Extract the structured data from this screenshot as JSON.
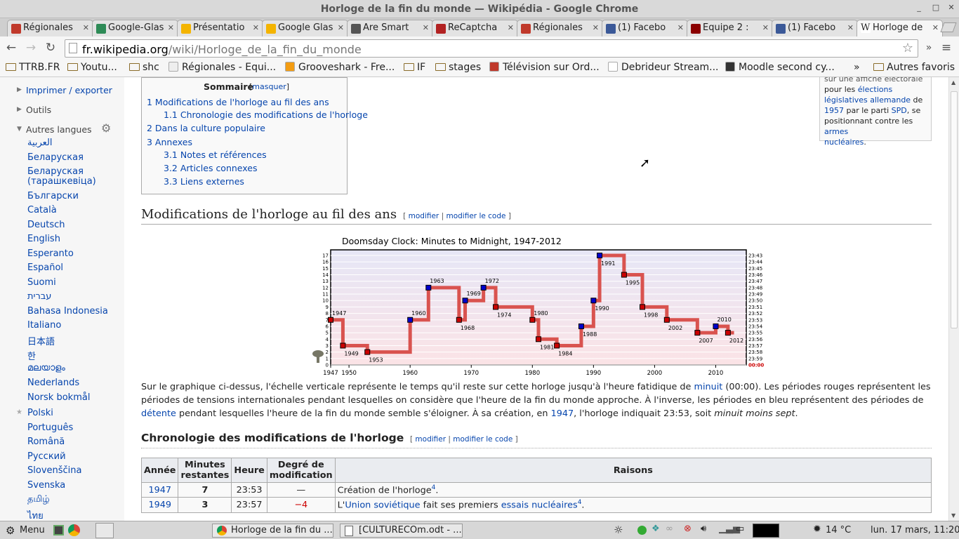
{
  "window": {
    "title": "Horloge de la fin du monde — Wikipédia - Google Chrome"
  },
  "tabs": [
    {
      "label": "Régionales",
      "color": "#c0392b"
    },
    {
      "label": "Google-Glas",
      "color": "#2e8b57"
    },
    {
      "label": "Présentatio",
      "color": "#f4b400"
    },
    {
      "label": "Google Glas",
      "color": "#f4b400"
    },
    {
      "label": "Are Smart",
      "color": "#555555"
    },
    {
      "label": "ReCaptcha",
      "color": "#b22222"
    },
    {
      "label": "Régionales",
      "color": "#c0392b"
    },
    {
      "label": "(1) Facebo",
      "color": "#3b5998"
    },
    {
      "label": "Equipe 2 :",
      "color": "#8b0000"
    },
    {
      "label": "(1) Facebo",
      "color": "#3b5998"
    },
    {
      "label": "Horloge de",
      "color": "#ffffff"
    }
  ],
  "address": {
    "domain": "fr.wikipedia.org",
    "path": "/wiki/Horloge_de_la_fin_du_monde"
  },
  "bookmarks": [
    "TTRB.FR",
    "Youtu...",
    "shc",
    "Régionales - Equi...",
    "Grooveshark - Fre...",
    "IF",
    "stages",
    "Télévision sur Ord...",
    "Debrideur Stream...",
    "Moodle second cy...",
    "»",
    "Autres favoris"
  ],
  "sidebar": {
    "print": "Imprimer / exporter",
    "tools": "Outils",
    "other_langs": "Autres langues",
    "languages": [
      "العربية",
      "Беларуская",
      "Беларуская",
      "(тарашкевіца)",
      "Български",
      "Català",
      "Deutsch",
      "English",
      "Esperanto",
      "Español",
      "Suomi",
      "עברית",
      "Bahasa Indonesia",
      "Italiano",
      "日本語",
      "한",
      "മലയാളം",
      "Nederlands",
      "Norsk bokmål",
      "Polski",
      "Português",
      "Română",
      "Русский",
      "Slovenščina",
      "Svenska",
      "தமிழ்",
      "ไทย"
    ]
  },
  "toc": {
    "title": "Sommaire",
    "hide": "masquer",
    "items": [
      "1 Modifications de l'horloge au fil des ans",
      "1.1 Chronologie des modifications de l'horloge",
      "2 Dans la culture populaire",
      "3 Annexes",
      "3.1 Notes et références",
      "3.2 Articles connexes",
      "3.3 Liens externes"
    ]
  },
  "infobox": {
    "line0": "sur une affiche électorale",
    "line1a": "pour les ",
    "line1b": "élections",
    "line2": "législatives allemande",
    "line2b": " de",
    "line3a": "1957",
    "line3b": " par le parti ",
    "line3c": "SPD",
    "line3d": ", se",
    "line4a": "positionnant contre les ",
    "line4b": "armes",
    "line5": "nucléaires",
    "line5b": "."
  },
  "section1": {
    "heading": "Modifications de l'horloge au fil des ans",
    "edit": "modifier",
    "edit_code": "modifier le code"
  },
  "section2": {
    "heading": "Chronologie des modifications de l'horloge",
    "edit": "modifier",
    "edit_code": "modifier le code"
  },
  "prose": {
    "p1": "Sur le graphique ci-dessus, l'échelle verticale représente le temps qu'il reste sur cette horloge jusqu'à l'heure fatidique de ",
    "minuit": "minuit",
    "p2": " (00:00). Les périodes rouges représentent les périodes de tensions internationales pendant lesquelles on considère que l'heure de la fin du monde approche. À l'inverse, les périodes en bleu représentent des périodes de ",
    "detente": "détente",
    "p3": " pendant lesquelles l'heure de la fin du monde semble s'éloigner. À sa création, en ",
    "y1947": "1947",
    "p4": ", l'horloge indiquait 23:53, soit ",
    "em": "minuit moins sept",
    "p5": "."
  },
  "table": {
    "headers": [
      "Année",
      "Minutes restantes",
      "Heure",
      "Degré de modification",
      "Raisons"
    ],
    "rows": [
      {
        "year": "1947",
        "min": "7",
        "time": "23:53",
        "deg": "—",
        "r1": "Création de l'horloge",
        "note": "4",
        "r2": ".",
        "r3": "",
        "r4": ""
      },
      {
        "year": "1949",
        "min": "3",
        "time": "23:57",
        "deg": "−4",
        "r1": "L'",
        "link1": "Union soviétique",
        "r2": " fait ses premiers ",
        "link2": "essais nucléaires",
        "note": "4",
        "r3": "."
      }
    ]
  },
  "chart_data": {
    "type": "line",
    "title": "Doomsday Clock: Minutes to Midnight, 1947-2012",
    "xlim": [
      1947,
      2015
    ],
    "ylim": [
      0,
      17
    ],
    "x_ticks": [
      1947,
      1950,
      1960,
      1970,
      1980,
      1990,
      2000,
      2010
    ],
    "y_ticks": [
      0,
      1,
      2,
      3,
      4,
      5,
      6,
      7,
      8,
      9,
      10,
      11,
      12,
      13,
      14,
      15,
      16,
      17
    ],
    "right_labels": [
      "00:00",
      "23:59",
      "23:58",
      "23:57",
      "23:56",
      "23:55",
      "23:54",
      "23:53",
      "23:52",
      "23:51",
      "23:50",
      "23:49",
      "23:48",
      "23:47",
      "23:46",
      "23:45",
      "23:44",
      "23:43"
    ],
    "points": [
      {
        "year": 1947,
        "min": 7,
        "kind": "red",
        "label": "1947"
      },
      {
        "year": 1949,
        "min": 3,
        "kind": "red",
        "label": "1949"
      },
      {
        "year": 1953,
        "min": 2,
        "kind": "red",
        "label": "1953"
      },
      {
        "year": 1960,
        "min": 7,
        "kind": "blue",
        "label": "1960"
      },
      {
        "year": 1963,
        "min": 12,
        "kind": "blue",
        "label": "1963"
      },
      {
        "year": 1968,
        "min": 7,
        "kind": "red",
        "label": "1968"
      },
      {
        "year": 1969,
        "min": 10,
        "kind": "blue",
        "label": "1969"
      },
      {
        "year": 1972,
        "min": 12,
        "kind": "blue",
        "label": "1972"
      },
      {
        "year": 1974,
        "min": 9,
        "kind": "red",
        "label": "1974"
      },
      {
        "year": 1980,
        "min": 7,
        "kind": "red",
        "label": "1980"
      },
      {
        "year": 1981,
        "min": 4,
        "kind": "red",
        "label": "1981"
      },
      {
        "year": 1984,
        "min": 3,
        "kind": "red",
        "label": "1984"
      },
      {
        "year": 1988,
        "min": 6,
        "kind": "blue",
        "label": "1988"
      },
      {
        "year": 1990,
        "min": 10,
        "kind": "blue",
        "label": "1990"
      },
      {
        "year": 1991,
        "min": 17,
        "kind": "blue",
        "label": "1991"
      },
      {
        "year": 1995,
        "min": 14,
        "kind": "red",
        "label": "1995"
      },
      {
        "year": 1998,
        "min": 9,
        "kind": "red",
        "label": "1998"
      },
      {
        "year": 2002,
        "min": 7,
        "kind": "red",
        "label": "2002"
      },
      {
        "year": 2007,
        "min": 5,
        "kind": "red",
        "label": "2007"
      },
      {
        "year": 2010,
        "min": 6,
        "kind": "blue",
        "label": "2010"
      },
      {
        "year": 2012,
        "min": 5,
        "kind": "red",
        "label": "2012"
      }
    ],
    "colors": {
      "line": "#d9534f",
      "red": "#cc0000",
      "blue": "#0000cc"
    }
  },
  "taskbar": {
    "menu": "Menu",
    "tasks": [
      "Horloge de la fin du ...",
      "[CULTURECOm.odt - ..."
    ],
    "weather": "14 °C",
    "clock": "lun. 17 mars, 11:20"
  }
}
